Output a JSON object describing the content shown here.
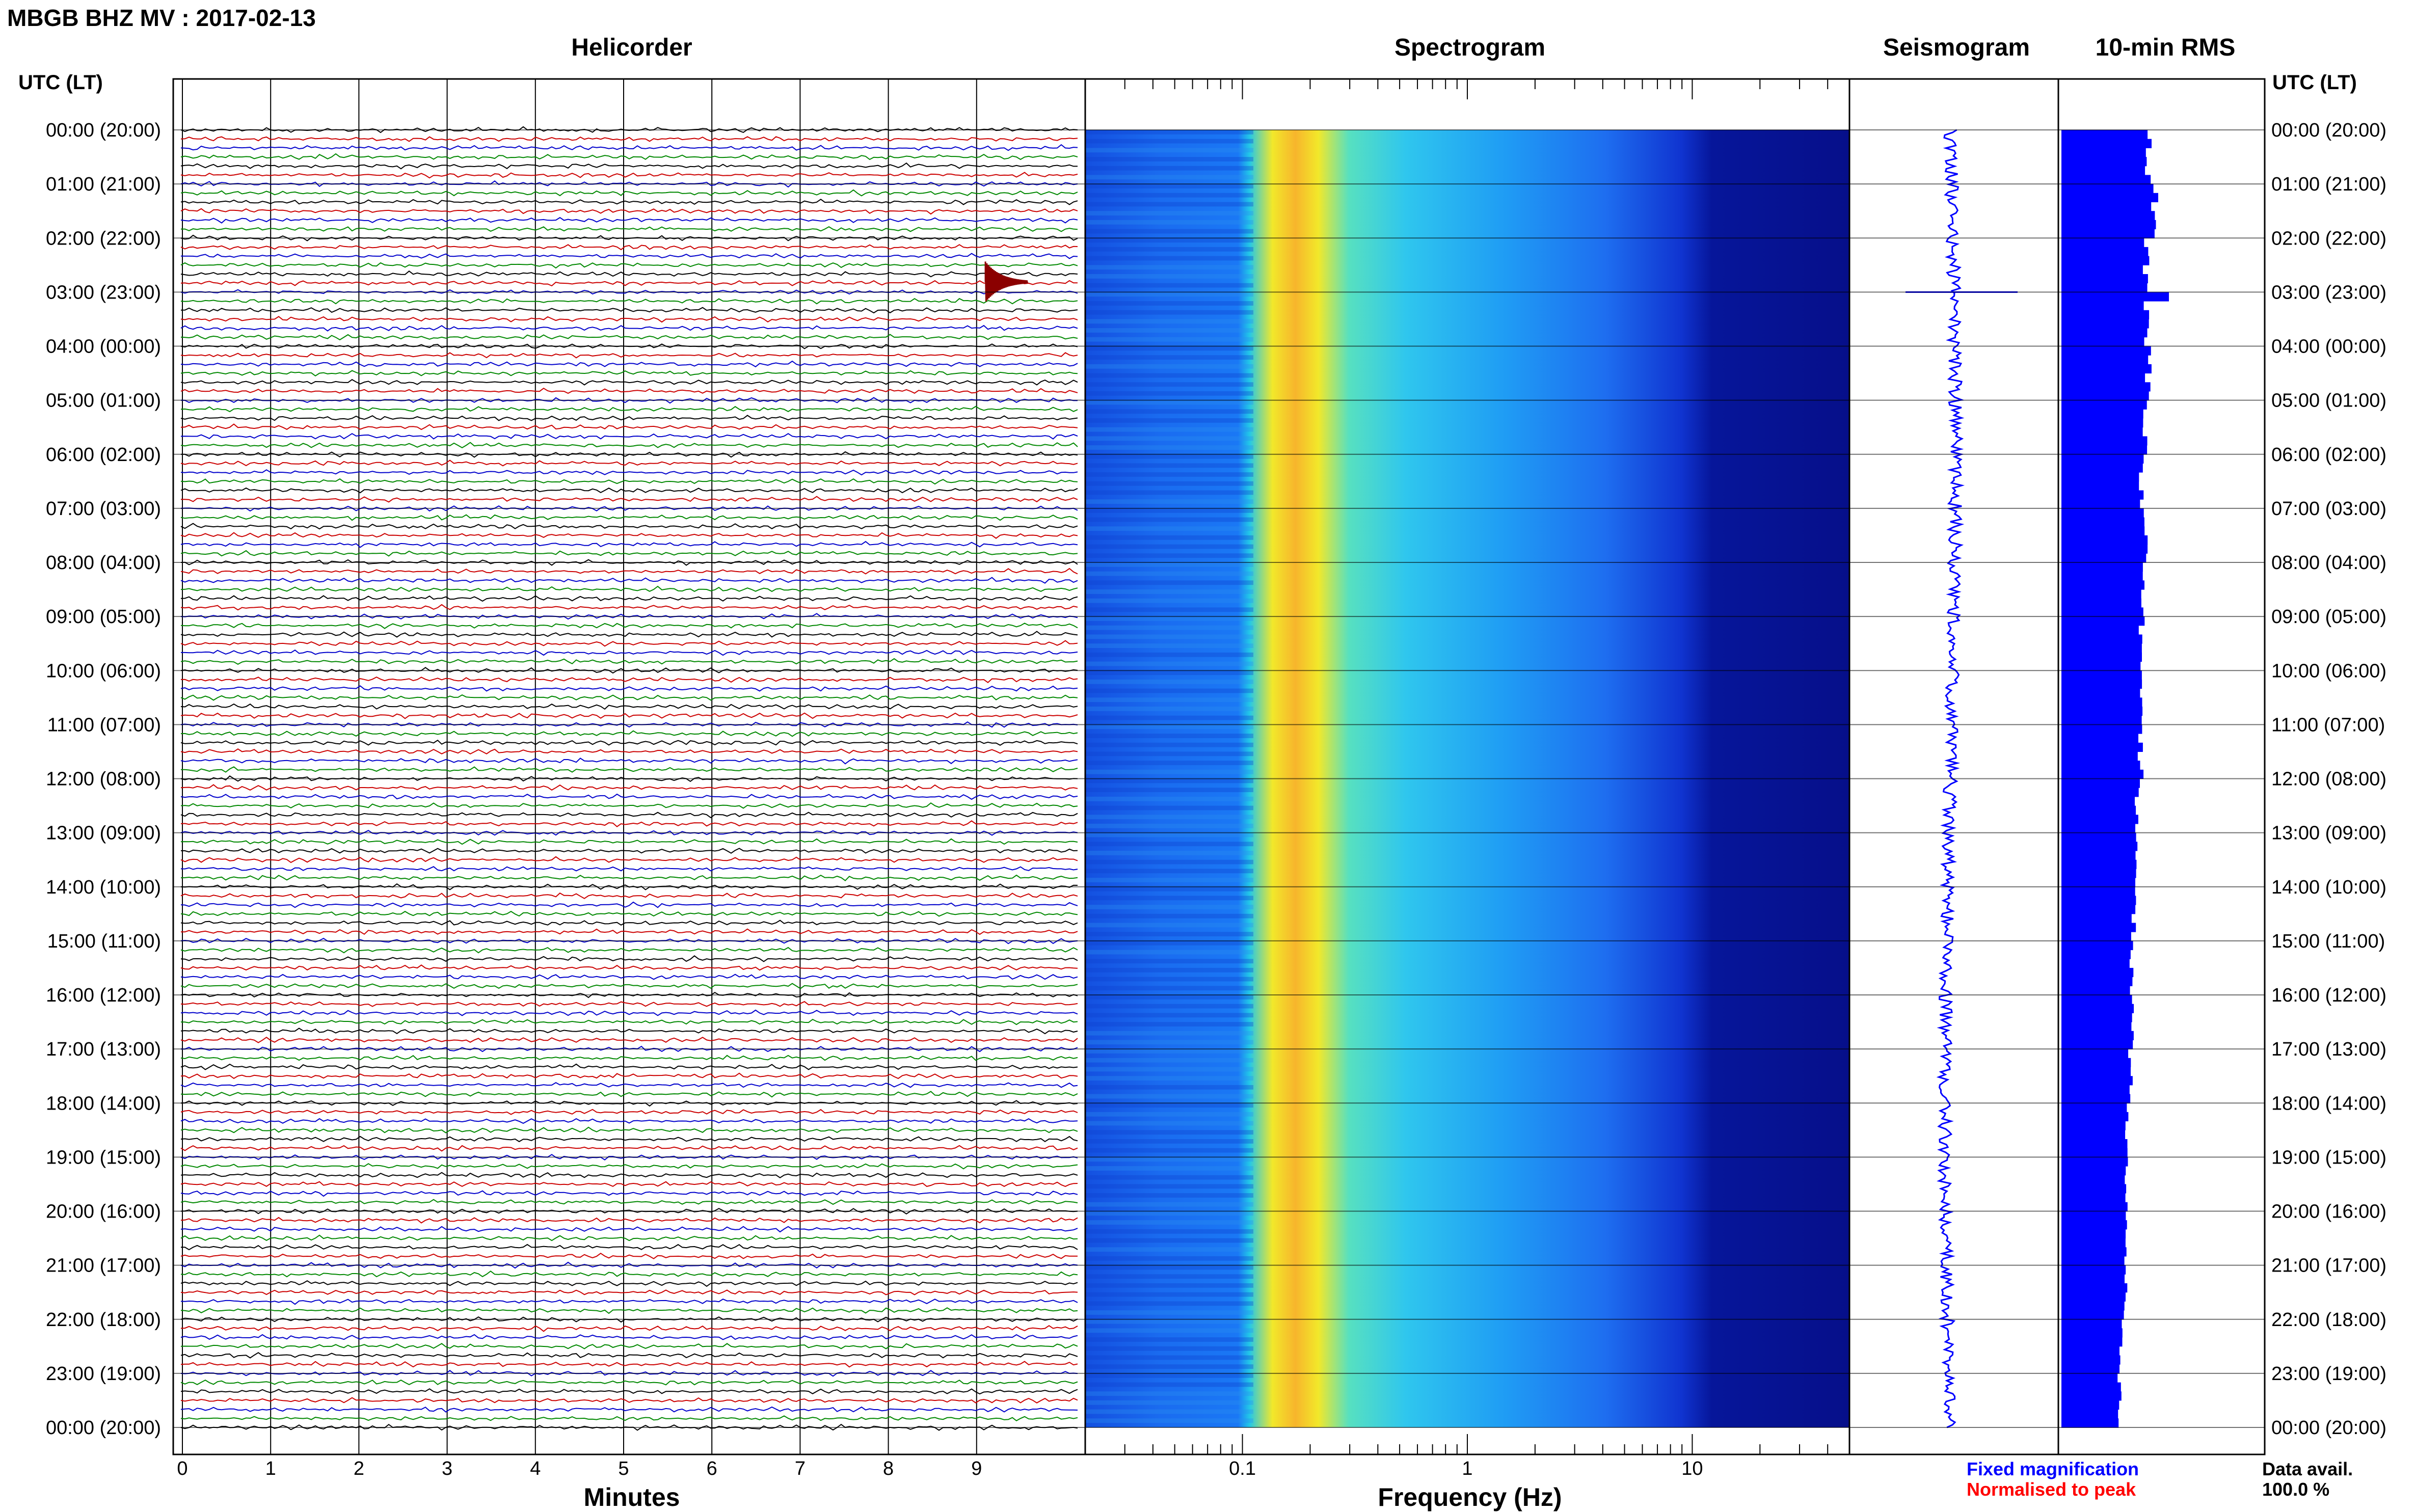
{
  "header": {
    "title": "MBGB BHZ MV : 2017-02-13",
    "utc_label": "UTC (LT)"
  },
  "panels": {
    "helicorder": "Helicorder",
    "spectrogram": "Spectrogram",
    "seismogram": "Seismogram",
    "rms": "10-min RMS"
  },
  "axes": {
    "minutes_label": "Minutes",
    "frequency_label": "Frequency (Hz)"
  },
  "legend": {
    "fixed": "Fixed magnification",
    "normalised": "Normalised to peak",
    "fixed_color": "#0000ff",
    "normalised_color": "#ff0000"
  },
  "availability": {
    "label": "Data avail.",
    "value": "100.0 %"
  },
  "time_labels": [
    "00:00 (20:00)",
    "01:00 (21:00)",
    "02:00 (22:00)",
    "03:00 (23:00)",
    "04:00 (00:00)",
    "05:00 (01:00)",
    "06:00 (02:00)",
    "07:00 (03:00)",
    "08:00 (04:00)",
    "09:00 (05:00)",
    "10:00 (06:00)",
    "11:00 (07:00)",
    "12:00 (08:00)",
    "13:00 (09:00)",
    "14:00 (10:00)",
    "15:00 (11:00)",
    "16:00 (12:00)",
    "17:00 (13:00)",
    "18:00 (14:00)",
    "19:00 (15:00)",
    "20:00 (16:00)",
    "21:00 (17:00)",
    "22:00 (18:00)",
    "23:00 (19:00)",
    "00:00 (20:00)"
  ],
  "chart_data": [
    {
      "type": "line",
      "panel": "helicorder",
      "title": "Helicorder",
      "xlabel": "Minutes",
      "x_ticks": [
        "0",
        "1",
        "2",
        "3",
        "4",
        "5",
        "6",
        "7",
        "8",
        "9"
      ],
      "xlim": [
        0,
        10
      ],
      "rows_per_hour": 6,
      "row_minutes": 10,
      "trace_colors": [
        "#000000",
        "#cc0000",
        "#0000cc",
        "#008800"
      ],
      "events": [
        {
          "time_utc": "03:00",
          "minute": 9.1,
          "color": "#8b0000"
        }
      ]
    },
    {
      "type": "heatmap",
      "panel": "spectrogram",
      "title": "Spectrogram",
      "xlabel": "Frequency (Hz)",
      "x_scale": "log",
      "xlim": [
        0.02,
        50
      ],
      "x_ticks": [
        "0.1",
        "1",
        "10"
      ],
      "colormap": "jet",
      "peak_frequency_band_hz": [
        0.15,
        0.35
      ]
    },
    {
      "type": "line",
      "panel": "seismogram",
      "title": "Seismogram",
      "color": "#0000ff",
      "events": [
        {
          "time_utc": "03:00",
          "amplitude": "spike"
        }
      ]
    },
    {
      "type": "bar",
      "panel": "rms",
      "title": "10-min RMS",
      "orientation": "horizontal",
      "color": "#0000ff",
      "interval_minutes": 10,
      "hourly_values": [
        0.82,
        0.88,
        0.8,
        1.0,
        0.82,
        0.78,
        0.76,
        0.8,
        0.77,
        0.76,
        0.76,
        0.75,
        0.72,
        0.71,
        0.68,
        0.67,
        0.66,
        0.65,
        0.62,
        0.62,
        0.61,
        0.6,
        0.57,
        0.55
      ]
    }
  ]
}
